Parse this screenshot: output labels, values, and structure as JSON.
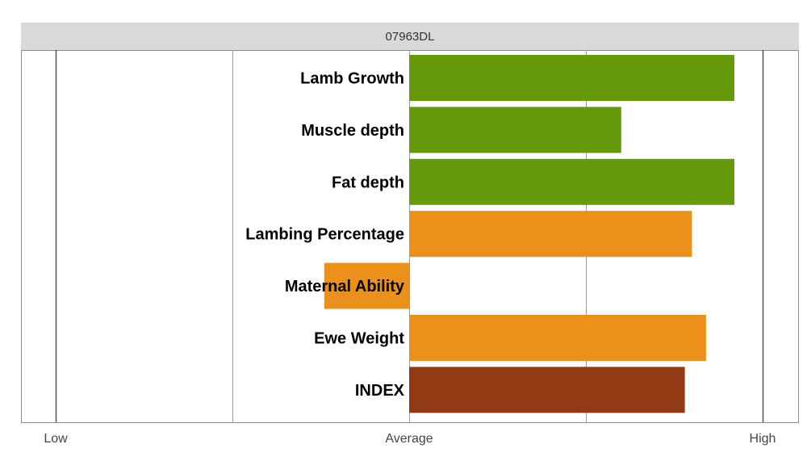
{
  "header": {
    "title": "07963DL"
  },
  "colors": {
    "growth": "#669a0b",
    "maternal": "#ea901b",
    "index": "#923a14",
    "grid": "#999999",
    "frame": "#8c8c8c"
  },
  "chart_data": {
    "type": "bar",
    "orientation": "horizontal",
    "title": "07963DL",
    "xlim": [
      -1,
      1
    ],
    "ticks": [
      {
        "value": -1,
        "label": "Low"
      },
      {
        "value": 0,
        "label": "Average"
      },
      {
        "value": 1,
        "label": "High"
      }
    ],
    "gridlines": [
      -1,
      -0.5,
      0,
      0.5,
      1
    ],
    "categories": [
      "Lamb Growth",
      "Muscle depth",
      "Fat depth",
      "Lambing Percentage",
      "Maternal Ability",
      "Ewe Weight",
      "INDEX"
    ],
    "values": [
      0.92,
      0.6,
      0.92,
      0.8,
      -0.24,
      0.84,
      0.78
    ],
    "bar_colors": [
      "#669a0b",
      "#669a0b",
      "#669a0b",
      "#ea901b",
      "#ea901b",
      "#ea901b",
      "#923a14"
    ]
  }
}
